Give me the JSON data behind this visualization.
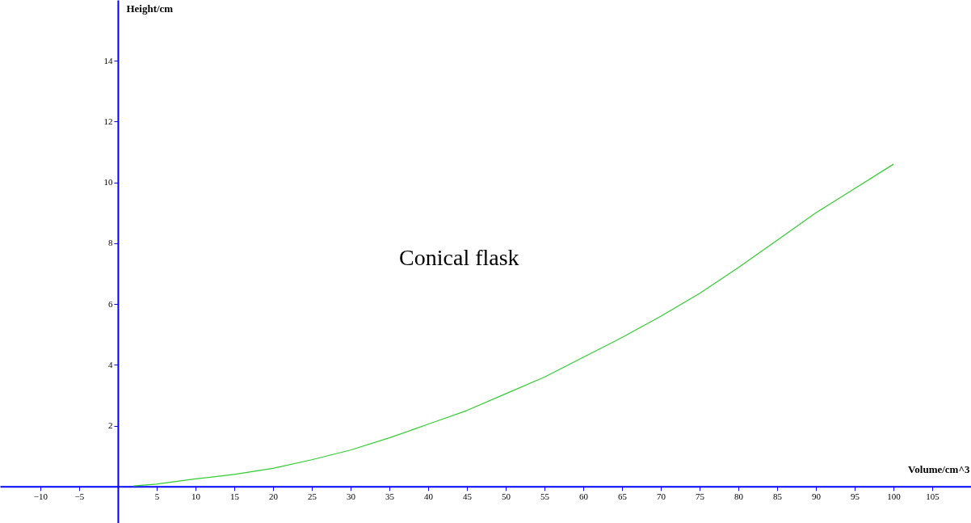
{
  "chart_data": {
    "type": "line",
    "xlabel": "Volume/cm^3",
    "ylabel": "Height/cm",
    "x": [
      2,
      5,
      10,
      15,
      20,
      25,
      30,
      35,
      40,
      45,
      50,
      55,
      60,
      65,
      70,
      75,
      80,
      85,
      90,
      95,
      100
    ],
    "series": [
      {
        "name": "Conical flask",
        "color": "#33cc33",
        "values": [
          0.02,
          0.08,
          0.25,
          0.4,
          0.6,
          0.88,
          1.2,
          1.6,
          2.05,
          2.5,
          3.05,
          3.6,
          4.25,
          4.9,
          5.6,
          6.35,
          7.2,
          8.1,
          9.0,
          9.8,
          10.6
        ]
      }
    ],
    "xlim": [
      -15.2,
      110
    ],
    "ylim": [
      -1.2,
      16
    ],
    "xticks": [
      -10,
      -5,
      5,
      10,
      15,
      20,
      25,
      30,
      35,
      40,
      45,
      50,
      55,
      60,
      65,
      70,
      75,
      80,
      85,
      90,
      95,
      100,
      105
    ],
    "yticks": [
      2,
      4,
      6,
      8,
      10,
      12,
      14
    ],
    "grid": false,
    "legend": false,
    "marker": "none",
    "line_style": "solid"
  }
}
